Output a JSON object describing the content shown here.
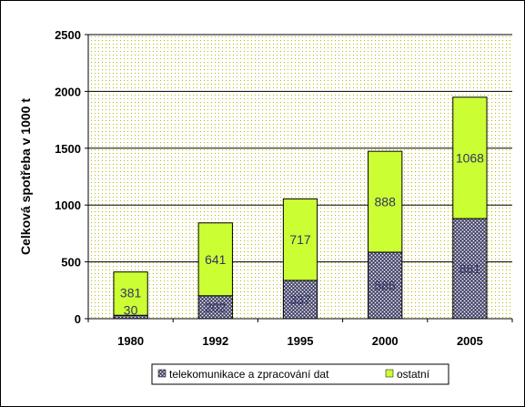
{
  "chart_data": {
    "type": "bar",
    "stacked": true,
    "categories": [
      "1980",
      "1992",
      "1995",
      "2000",
      "2005"
    ],
    "series": [
      {
        "name": "telekomunikace a zpracování dat",
        "values": [
          30,
          202,
          337,
          585,
          881
        ],
        "pattern": "crosshatch",
        "color": "#808080"
      },
      {
        "name": "ostatní",
        "values": [
          381,
          641,
          717,
          888,
          1068
        ],
        "color": "#ccff33"
      }
    ],
    "title": "",
    "xlabel": "",
    "ylabel": "Celková spotřeba v 1000 t",
    "ylim": [
      0,
      2500
    ],
    "yticks": [
      0,
      500,
      1000,
      1500,
      2000,
      2500
    ],
    "grid": true,
    "legend": "bottom"
  }
}
